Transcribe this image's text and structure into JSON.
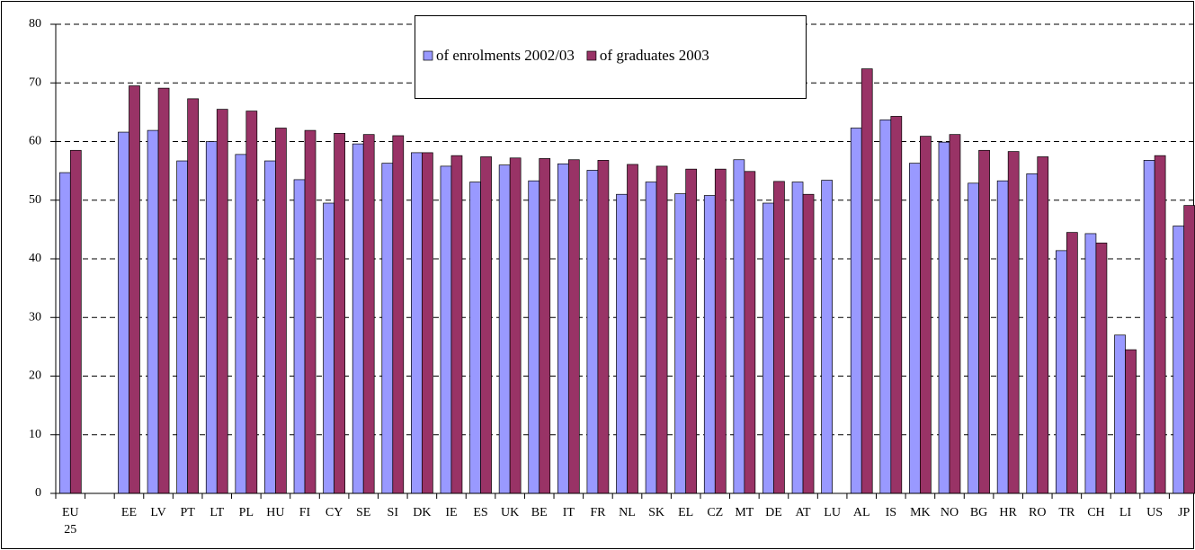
{
  "chart_data": {
    "type": "bar",
    "categories": [
      "EU 25",
      null,
      "EE",
      "LV",
      "PT",
      "LT",
      "PL",
      "HU",
      "FI",
      "CY",
      "SE",
      "SI",
      "DK",
      "IE",
      "ES",
      "UK",
      "BE",
      "IT",
      "FR",
      "NL",
      "SK",
      "EL",
      "CZ",
      "MT",
      "DE",
      "AT",
      "LU",
      "AL",
      "IS",
      "MK",
      "NO",
      "BG",
      "HR",
      "RO",
      "TR",
      "CH",
      "LI",
      "US",
      "JP"
    ],
    "series": [
      {
        "name": "of enrolments 2002/03",
        "color": "#9999ff",
        "values": [
          54.7,
          null,
          61.6,
          61.9,
          56.7,
          60.0,
          57.8,
          56.7,
          53.5,
          49.5,
          59.6,
          56.3,
          58.1,
          55.8,
          53.1,
          56.0,
          53.3,
          56.2,
          55.1,
          51.0,
          53.1,
          51.1,
          50.8,
          56.9,
          49.5,
          53.1,
          53.4,
          62.3,
          63.7,
          56.3,
          59.9,
          52.9,
          53.3,
          54.5,
          41.4,
          44.3,
          27.0,
          56.8,
          45.6
        ]
      },
      {
        "name": "of graduates 2003",
        "color": "#993366",
        "values": [
          58.5,
          null,
          69.5,
          69.1,
          67.3,
          65.5,
          65.2,
          62.3,
          61.9,
          61.4,
          61.2,
          61.0,
          58.1,
          57.6,
          57.4,
          57.2,
          57.1,
          56.9,
          56.8,
          56.1,
          55.8,
          55.3,
          55.3,
          54.9,
          53.2,
          51.0,
          null,
          72.4,
          64.3,
          60.9,
          61.2,
          58.5,
          58.3,
          57.4,
          44.5,
          42.7,
          24.5,
          57.6,
          49.1
        ]
      }
    ],
    "ylim": [
      0,
      80
    ],
    "yticks": [
      0,
      10,
      20,
      30,
      40,
      50,
      60,
      70,
      80
    ],
    "grid": true
  }
}
